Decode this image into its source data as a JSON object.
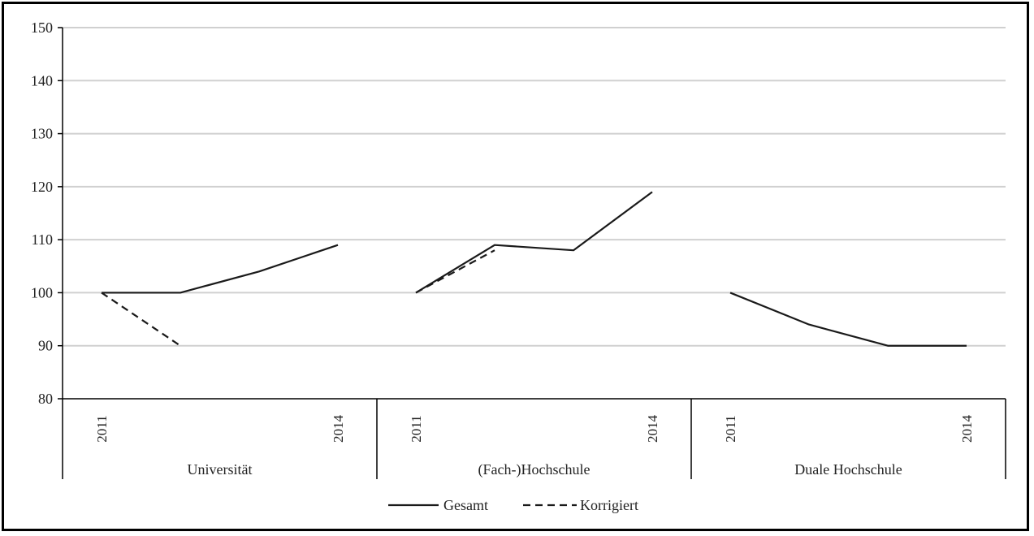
{
  "chart_data": {
    "type": "line",
    "ylim": [
      80,
      150
    ],
    "yticks": [
      80,
      90,
      100,
      110,
      120,
      130,
      140,
      150
    ],
    "grid": true,
    "legend_position": "bottom",
    "groups": [
      {
        "label": "Universität",
        "x": [
          "2011",
          "2012",
          "2013",
          "2014"
        ],
        "x_labels": [
          "2011",
          "",
          "",
          "2014"
        ],
        "series": [
          {
            "name": "Gesamt",
            "values": [
              100,
              100,
              104,
              109
            ]
          },
          {
            "name": "Korrigiert",
            "values": [
              100,
              90,
              null,
              null
            ]
          }
        ]
      },
      {
        "label": "(Fach-)Hochschule",
        "x": [
          "2011",
          "2012",
          "2013",
          "2014"
        ],
        "x_labels": [
          "2011",
          "",
          "",
          "2014"
        ],
        "series": [
          {
            "name": "Gesamt",
            "values": [
              100,
              109,
              108,
              119
            ]
          },
          {
            "name": "Korrigiert",
            "values": [
              100,
              108,
              null,
              null
            ]
          }
        ]
      },
      {
        "label": "Duale Hochschule",
        "x": [
          "2011",
          "2012",
          "2013",
          "2014"
        ],
        "x_labels": [
          "2011",
          "",
          "",
          "2014"
        ],
        "series": [
          {
            "name": "Gesamt",
            "values": [
              100,
              94,
              90,
              90
            ]
          },
          {
            "name": "Korrigiert",
            "values": [
              null,
              null,
              null,
              null
            ]
          }
        ]
      }
    ],
    "legend": [
      {
        "name": "Gesamt",
        "style": "solid"
      },
      {
        "name": "Korrigiert",
        "style": "dashed"
      }
    ],
    "colors": {
      "line": "#1a1a1a",
      "grid": "#d0d0d0",
      "axis": "#000000"
    }
  }
}
